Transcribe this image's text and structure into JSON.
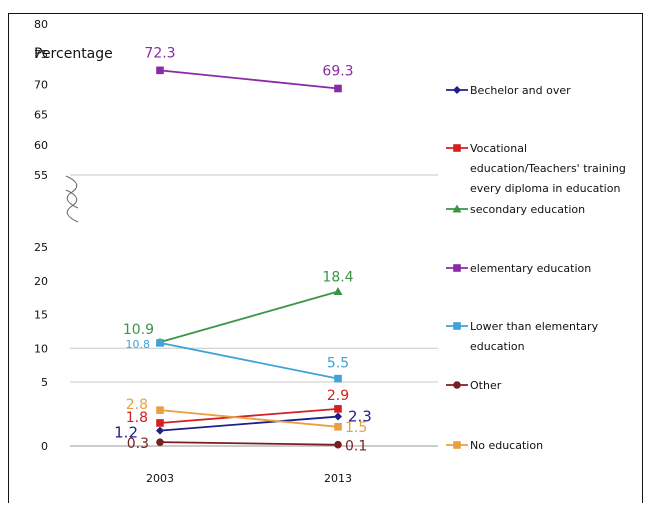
{
  "chart_data": {
    "type": "line",
    "ylabel": "Percentage",
    "x": [
      "2003",
      "2013"
    ],
    "y_ticks": [
      "0",
      "5",
      "10",
      "15",
      "20",
      "25",
      "55",
      "60",
      "65",
      "70",
      "75",
      "80"
    ],
    "y_axis_break": [
      25,
      55
    ],
    "grid": "horizontal lines at 5, 10 and 55",
    "legend_placement": "right",
    "series": [
      {
        "name": "Bechelor and over",
        "color": "#1f1f8c",
        "marker": "diamond",
        "values": [
          1.2,
          2.3
        ],
        "labels": [
          "1.2",
          "2.3"
        ]
      },
      {
        "name": "Vocational education/Teachers' training every diploma in education",
        "color": "#d42020",
        "marker": "square",
        "values": [
          1.8,
          2.9
        ],
        "labels": [
          "1.8",
          "2.9"
        ]
      },
      {
        "name": "secondary education",
        "color": "#3c9448",
        "marker": "triangle",
        "values": [
          10.9,
          18.4
        ],
        "labels": [
          "10.9",
          "18.4"
        ]
      },
      {
        "name": "elementary education",
        "color": "#8a2aa6",
        "marker": "square",
        "values": [
          72.3,
          69.3
        ],
        "labels": [
          "72.3",
          "69.3"
        ]
      },
      {
        "name": "Lower than elementary education",
        "color": "#3ea3d6",
        "marker": "square",
        "values": [
          10.8,
          5.5
        ],
        "labels": [
          "10.8",
          "5.5"
        ]
      },
      {
        "name": "Other",
        "color": "#7a1f1f",
        "marker": "circle",
        "values": [
          0.3,
          0.1
        ],
        "labels": [
          "0.3",
          "0.1"
        ]
      },
      {
        "name": "No education",
        "color": "#e8a040",
        "marker": "square",
        "values": [
          2.8,
          1.5
        ],
        "labels": [
          "2.8",
          "1.5"
        ]
      }
    ]
  }
}
